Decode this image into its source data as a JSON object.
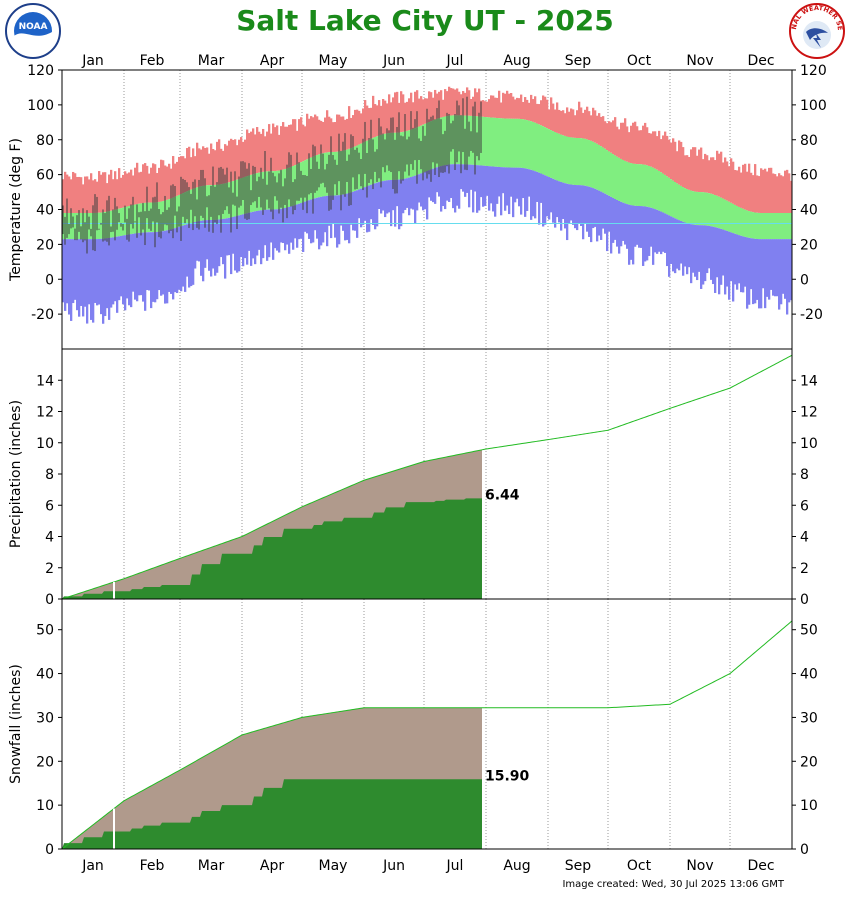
{
  "title": "Salt Lake City UT - 2025",
  "footer": "Image created: Wed, 30 Jul 2025 13:06 GMT",
  "logos": {
    "left_text": "NOAA",
    "right_text": "NATIONAL WEATHER SERVICE"
  },
  "colors": {
    "title": "#1a8a1a",
    "record_range": "#f08080",
    "normal_range": "#80ee80",
    "record_low": "#8080f0",
    "observed": "#404040",
    "observed_fill": "#2e8b2e",
    "normal_fill": "#b09a8c",
    "normal_line": "#22bb22"
  },
  "chart_data": [
    {
      "type": "area",
      "name": "temperature",
      "ylabel": "Temperature (deg F)",
      "ylim": [
        -40,
        120
      ],
      "yticks": [
        -20,
        0,
        20,
        40,
        60,
        80,
        100,
        120
      ],
      "months": [
        "Jan",
        "Feb",
        "Mar",
        "Apr",
        "May",
        "Jun",
        "Jul",
        "Aug",
        "Sep",
        "Oct",
        "Nov",
        "Dec"
      ],
      "normal_high_monthly": [
        38,
        44,
        54,
        62,
        73,
        84,
        94,
        92,
        81,
        66,
        50,
        38
      ],
      "normal_low_monthly": [
        23,
        27,
        34,
        40,
        48,
        57,
        66,
        64,
        54,
        42,
        31,
        23
      ],
      "record_high_monthly": [
        58,
        64,
        76,
        86,
        94,
        104,
        107,
        104,
        98,
        87,
        72,
        62
      ],
      "record_low_monthly": [
        -20,
        -12,
        6,
        15,
        25,
        35,
        45,
        42,
        28,
        14,
        0,
        -12
      ],
      "observed_through_day": 210
    },
    {
      "type": "area",
      "name": "precipitation",
      "ylabel": "Precipitation (inches)",
      "ylim": [
        0,
        16
      ],
      "yticks": [
        0,
        2,
        4,
        6,
        8,
        10,
        12,
        14
      ],
      "normal_cumulative_monthly": [
        1.3,
        2.6,
        4.0,
        5.9,
        7.6,
        8.8,
        9.6,
        10.2,
        10.8,
        12.2,
        13.5,
        15.6
      ],
      "observed_cumulative_monthly": [
        0.5,
        0.9,
        2.9,
        4.5,
        5.2,
        6.2,
        6.44
      ],
      "observed_total": "6.44"
    },
    {
      "type": "area",
      "name": "snowfall",
      "ylabel": "Snowfall (inches)",
      "ylim": [
        0,
        57
      ],
      "yticks": [
        0,
        10,
        20,
        30,
        40,
        50
      ],
      "normal_cumulative_monthly": [
        11,
        18,
        26,
        30,
        32.2,
        32.2,
        32.2,
        32.2,
        32.2,
        33,
        40,
        52
      ],
      "observed_cumulative_monthly": [
        4,
        6,
        10,
        15.9,
        15.9,
        15.9,
        15.9
      ],
      "observed_total": "15.90"
    }
  ]
}
